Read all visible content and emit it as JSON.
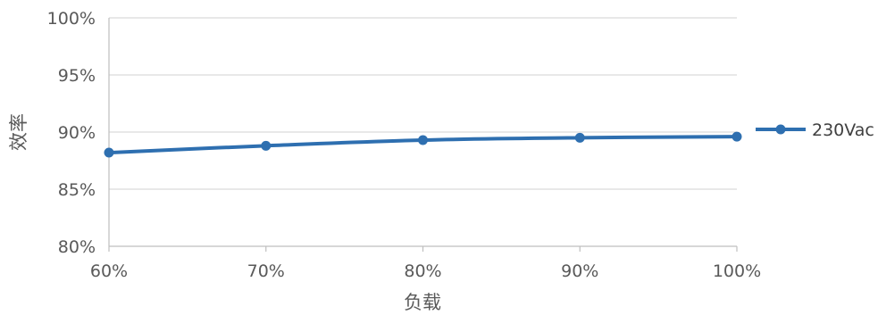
{
  "chart_data": {
    "type": "line",
    "xlabel": "负载",
    "ylabel": "效率",
    "x_ticks": [
      "60%",
      "70%",
      "80%",
      "90%",
      "100%"
    ],
    "y_ticks": [
      "100%",
      "95%",
      "90%",
      "85%",
      "80%"
    ],
    "x": [
      60,
      70,
      80,
      90,
      100
    ],
    "xlim": [
      60,
      100
    ],
    "ylim": [
      80,
      100
    ],
    "grid": "horizontal",
    "legend": "right",
    "series": [
      {
        "name": "230Vac",
        "color": "#2e6fb0",
        "values": [
          88.2,
          88.8,
          89.3,
          89.5,
          89.6
        ]
      }
    ]
  }
}
